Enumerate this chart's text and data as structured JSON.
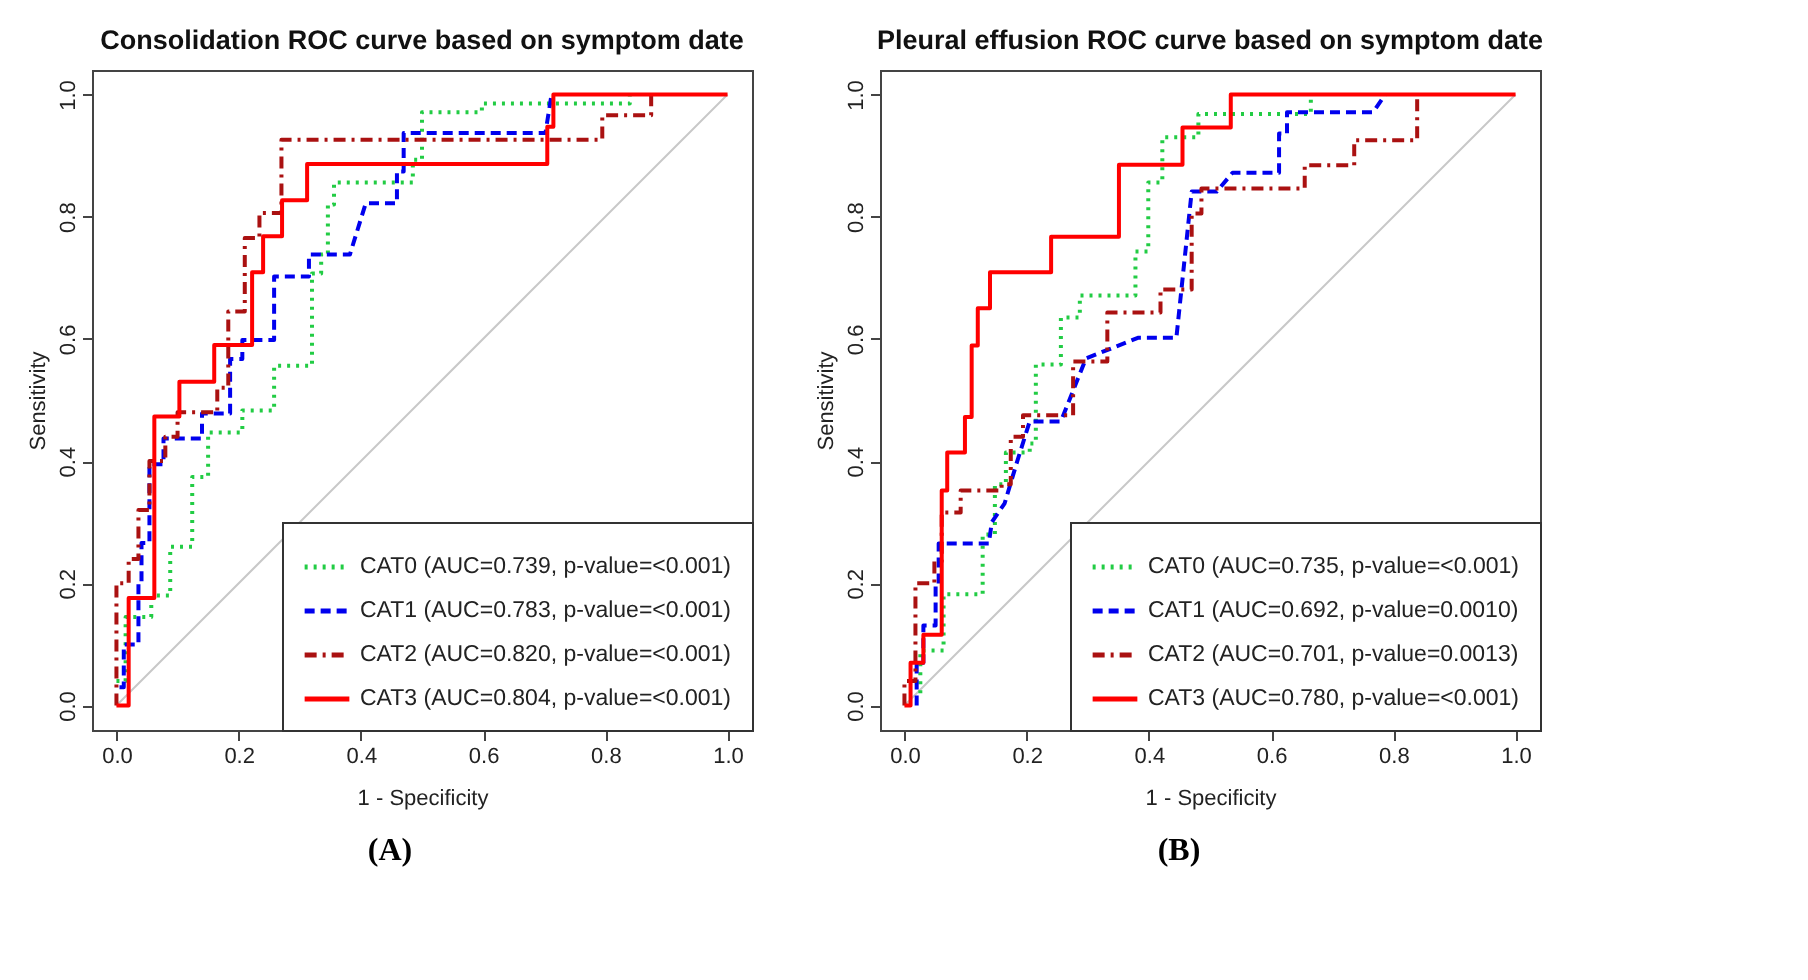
{
  "chart_data": [
    {
      "type": "line",
      "title": "Consolidation ROC curve based on symptom date",
      "xlabel": "1 - Specificity",
      "ylabel": "Sensitivity",
      "xlim": [
        -0.04,
        1.04
      ],
      "ylim": [
        -0.04,
        1.04
      ],
      "xticks": [
        {
          "value": 0,
          "label": "0.0"
        },
        {
          "value": 0.2,
          "label": "0.2"
        },
        {
          "value": 0.4,
          "label": "0.4"
        },
        {
          "value": 0.6,
          "label": "0.6"
        },
        {
          "value": 0.8,
          "label": "0.8"
        },
        {
          "value": 1,
          "label": "1.0"
        }
      ],
      "yticks": [
        {
          "value": 0,
          "label": "0.0"
        },
        {
          "value": 0.2,
          "label": "0.2"
        },
        {
          "value": 0.4,
          "label": "0.4"
        },
        {
          "value": 0.6,
          "label": "0.6"
        },
        {
          "value": 0.8,
          "label": "0.8"
        },
        {
          "value": 1,
          "label": "1.0"
        }
      ],
      "legend": "bottom right",
      "annotations": [
        "(A)"
      ],
      "series": [
        {
          "color": "#c8c8c8",
          "line_style": "solid",
          "x": [
            0,
            1
          ],
          "values": [
            0,
            1
          ]
        },
        {
          "name": "CAT0 (AUC=0.739, p-value=<0.001)",
          "color": "#22cc44",
          "line_style": "dotted",
          "x": [
            0,
            0.015,
            0.015,
            0.057,
            0.057,
            0.088,
            0.088,
            0.124,
            0.124,
            0.15,
            0.15,
            0.206,
            0.206,
            0.258,
            0.258,
            0.32,
            0.32,
            0.335,
            0.335,
            0.346,
            0.346,
            0.356,
            0.356,
            0.485,
            0.485,
            0.5,
            0.5,
            0.598,
            0.598,
            0.84,
            0.84
          ],
          "values": [
            0.04,
            0.04,
            0.145,
            0.145,
            0.18,
            0.18,
            0.26,
            0.26,
            0.374,
            0.374,
            0.447,
            0.447,
            0.483,
            0.483,
            0.556,
            0.556,
            0.707,
            0.707,
            0.738,
            0.738,
            0.82,
            0.82,
            0.856,
            0.856,
            0.893,
            0.893,
            0.971,
            0.971,
            0.985,
            0.985,
            1
          ]
        },
        {
          "name": "CAT1 (AUC=0.783, p-value=<0.001)",
          "color": "#0000ee",
          "line_style": "dashed",
          "x": [
            0.005,
            0.012,
            0.012,
            0.036,
            0.036,
            0.041,
            0.041,
            0.054,
            0.054,
            0.077,
            0.077,
            0.14,
            0.14,
            0.186,
            0.186,
            0.206,
            0.206,
            0.258,
            0.258,
            0.315,
            0.315,
            0.382,
            0.408,
            0.459,
            0.459,
            0.47,
            0.47,
            0.702,
            0.712
          ],
          "values": [
            0.03,
            0.03,
            0.1,
            0.1,
            0.2,
            0.2,
            0.266,
            0.266,
            0.395,
            0.395,
            0.437,
            0.437,
            0.478,
            0.478,
            0.567,
            0.567,
            0.598,
            0.598,
            0.702,
            0.702,
            0.738,
            0.738,
            0.822,
            0.822,
            0.874,
            0.874,
            0.937,
            0.937,
            1
          ]
        },
        {
          "name": "CAT2 (AUC=0.820, p-value=<0.001)",
          "color": "#aa1111",
          "line_style": "dashdot",
          "x": [
            0,
            0,
            0.02,
            0.02,
            0.036,
            0.036,
            0.054,
            0.054,
            0.08,
            0.08,
            0.1,
            0.1,
            0.165,
            0.165,
            0.183,
            0.183,
            0.21,
            0.21,
            0.234,
            0.234,
            0.27,
            0.27,
            0.795,
            0.795,
            0.875,
            0.875
          ],
          "values": [
            0,
            0.2,
            0.2,
            0.24,
            0.24,
            0.32,
            0.32,
            0.4,
            0.4,
            0.44,
            0.44,
            0.48,
            0.48,
            0.52,
            0.52,
            0.645,
            0.645,
            0.765,
            0.765,
            0.806,
            0.806,
            0.926,
            0.926,
            0.966,
            0.966,
            1
          ]
        },
        {
          "name": "CAT3 (AUC=0.804, p-value=<0.001)",
          "color": "#ff0000",
          "line_style": "solid",
          "x": [
            0,
            0.02,
            0.02,
            0.062,
            0.062,
            0.103,
            0.103,
            0.16,
            0.16,
            0.222,
            0.222,
            0.24,
            0.24,
            0.271,
            0.271,
            0.312,
            0.312,
            0.705,
            0.705,
            0.715,
            0.715,
            1
          ],
          "values": [
            0,
            0,
            0.176,
            0.176,
            0.473,
            0.473,
            0.53,
            0.53,
            0.59,
            0.59,
            0.709,
            0.709,
            0.768,
            0.768,
            0.827,
            0.827,
            0.886,
            0.886,
            0.947,
            0.947,
            1,
            1
          ]
        }
      ]
    },
    {
      "type": "line",
      "title": "Pleural effusion ROC curve based on symptom date",
      "xlabel": "1 - Specificity",
      "ylabel": "Sensitivity",
      "xlim": [
        -0.04,
        1.04
      ],
      "ylim": [
        -0.04,
        1.04
      ],
      "xticks": [
        {
          "value": 0,
          "label": "0.0"
        },
        {
          "value": 0.2,
          "label": "0.2"
        },
        {
          "value": 0.4,
          "label": "0.4"
        },
        {
          "value": 0.6,
          "label": "0.6"
        },
        {
          "value": 0.8,
          "label": "0.8"
        },
        {
          "value": 1,
          "label": "1.0"
        }
      ],
      "yticks": [
        {
          "value": 0,
          "label": "0.0"
        },
        {
          "value": 0.2,
          "label": "0.2"
        },
        {
          "value": 0.4,
          "label": "0.4"
        },
        {
          "value": 0.6,
          "label": "0.6"
        },
        {
          "value": 0.8,
          "label": "0.8"
        },
        {
          "value": 1,
          "label": "1.0"
        }
      ],
      "legend": "bottom right",
      "annotations": [
        "(B)"
      ],
      "series": [
        {
          "color": "#c8c8c8",
          "line_style": "solid",
          "x": [
            0,
            1
          ],
          "values": [
            0,
            1
          ]
        },
        {
          "name": "CAT0 (AUC=0.735, p-value=<0.001)",
          "color": "#22cc44",
          "line_style": "dotted",
          "x": [
            0.026,
            0.026,
            0.064,
            0.064,
            0.128,
            0.128,
            0.148,
            0.148,
            0.166,
            0.166,
            0.205,
            0.205,
            0.215,
            0.215,
            0.256,
            0.256,
            0.287,
            0.287,
            0.307,
            0.307,
            0.378,
            0.378,
            0.399,
            0.399,
            0.422,
            0.422,
            0.481,
            0.481,
            0.527,
            0.527,
            0.665,
            0.665
          ],
          "values": [
            0.02,
            0.09,
            0.09,
            0.182,
            0.182,
            0.28,
            0.28,
            0.362,
            0.362,
            0.414,
            0.414,
            0.429,
            0.429,
            0.558,
            0.558,
            0.635,
            0.635,
            0.671,
            0.671,
            0.671,
            0.671,
            0.743,
            0.743,
            0.856,
            0.856,
            0.93,
            0.93,
            0.968,
            0.968,
            0.968,
            0.968,
            1
          ]
        },
        {
          "name": "CAT1 (AUC=0.692, p-value=0.0010)",
          "color": "#0000ee",
          "line_style": "dashed",
          "x": [
            0.02,
            0.02,
            0.031,
            0.031,
            0.051,
            0.051,
            0.056,
            0.056,
            0.138,
            0.143,
            0.164,
            0.184,
            0.205,
            0.256,
            0.297,
            0.383,
            0.445,
            0.47,
            0.511,
            0.537,
            0.613,
            0.613,
            0.626,
            0.626,
            0.767,
            0.787
          ],
          "values": [
            0,
            0.07,
            0.07,
            0.131,
            0.131,
            0.198,
            0.198,
            0.265,
            0.265,
            0.3,
            0.331,
            0.398,
            0.465,
            0.465,
            0.568,
            0.602,
            0.602,
            0.841,
            0.841,
            0.872,
            0.872,
            0.936,
            0.936,
            0.971,
            0.971,
            1
          ]
        },
        {
          "name": "CAT2 (AUC=0.701, p-value=0.0013)",
          "color": "#aa1111",
          "line_style": "dashdot",
          "x": [
            0,
            0,
            0.018,
            0.018,
            0.049,
            0.049,
            0.061,
            0.061,
            0.092,
            0.092,
            0.159,
            0.159,
            0.174,
            0.174,
            0.194,
            0.194,
            0.256,
            0.256,
            0.276,
            0.276,
            0.332,
            0.332,
            0.419,
            0.419,
            0.465,
            0.465,
            0.47,
            0.47,
            0.486,
            0.486,
            0.655,
            0.655,
            0.736,
            0.736,
            0.828,
            0.828,
            0.839,
            0.839
          ],
          "values": [
            0,
            0.04,
            0.04,
            0.2,
            0.2,
            0.236,
            0.236,
            0.316,
            0.316,
            0.352,
            0.352,
            0.362,
            0.362,
            0.44,
            0.44,
            0.475,
            0.475,
            0.475,
            0.475,
            0.563,
            0.563,
            0.643,
            0.643,
            0.681,
            0.681,
            0.681,
            0.681,
            0.805,
            0.805,
            0.846,
            0.846,
            0.884,
            0.884,
            0.925,
            0.925,
            0.925,
            0.925,
            1
          ]
        },
        {
          "name": "CAT3 (AUC=0.780, p-value=<0.001)",
          "color": "#ff0000",
          "line_style": "solid",
          "x": [
            0,
            0.01,
            0.01,
            0.031,
            0.031,
            0.061,
            0.061,
            0.07,
            0.07,
            0.099,
            0.099,
            0.11,
            0.11,
            0.12,
            0.12,
            0.14,
            0.14,
            0.24,
            0.24,
            0.351,
            0.351,
            0.455,
            0.455,
            0.534,
            0.534,
            0.796,
            0.796,
            1
          ],
          "values": [
            0,
            0,
            0.07,
            0.07,
            0.116,
            0.116,
            0.352,
            0.352,
            0.414,
            0.414,
            0.472,
            0.472,
            0.589,
            0.589,
            0.65,
            0.65,
            0.709,
            0.709,
            0.767,
            0.767,
            0.885,
            0.885,
            0.946,
            0.946,
            1,
            1,
            1,
            1
          ]
        }
      ]
    }
  ]
}
